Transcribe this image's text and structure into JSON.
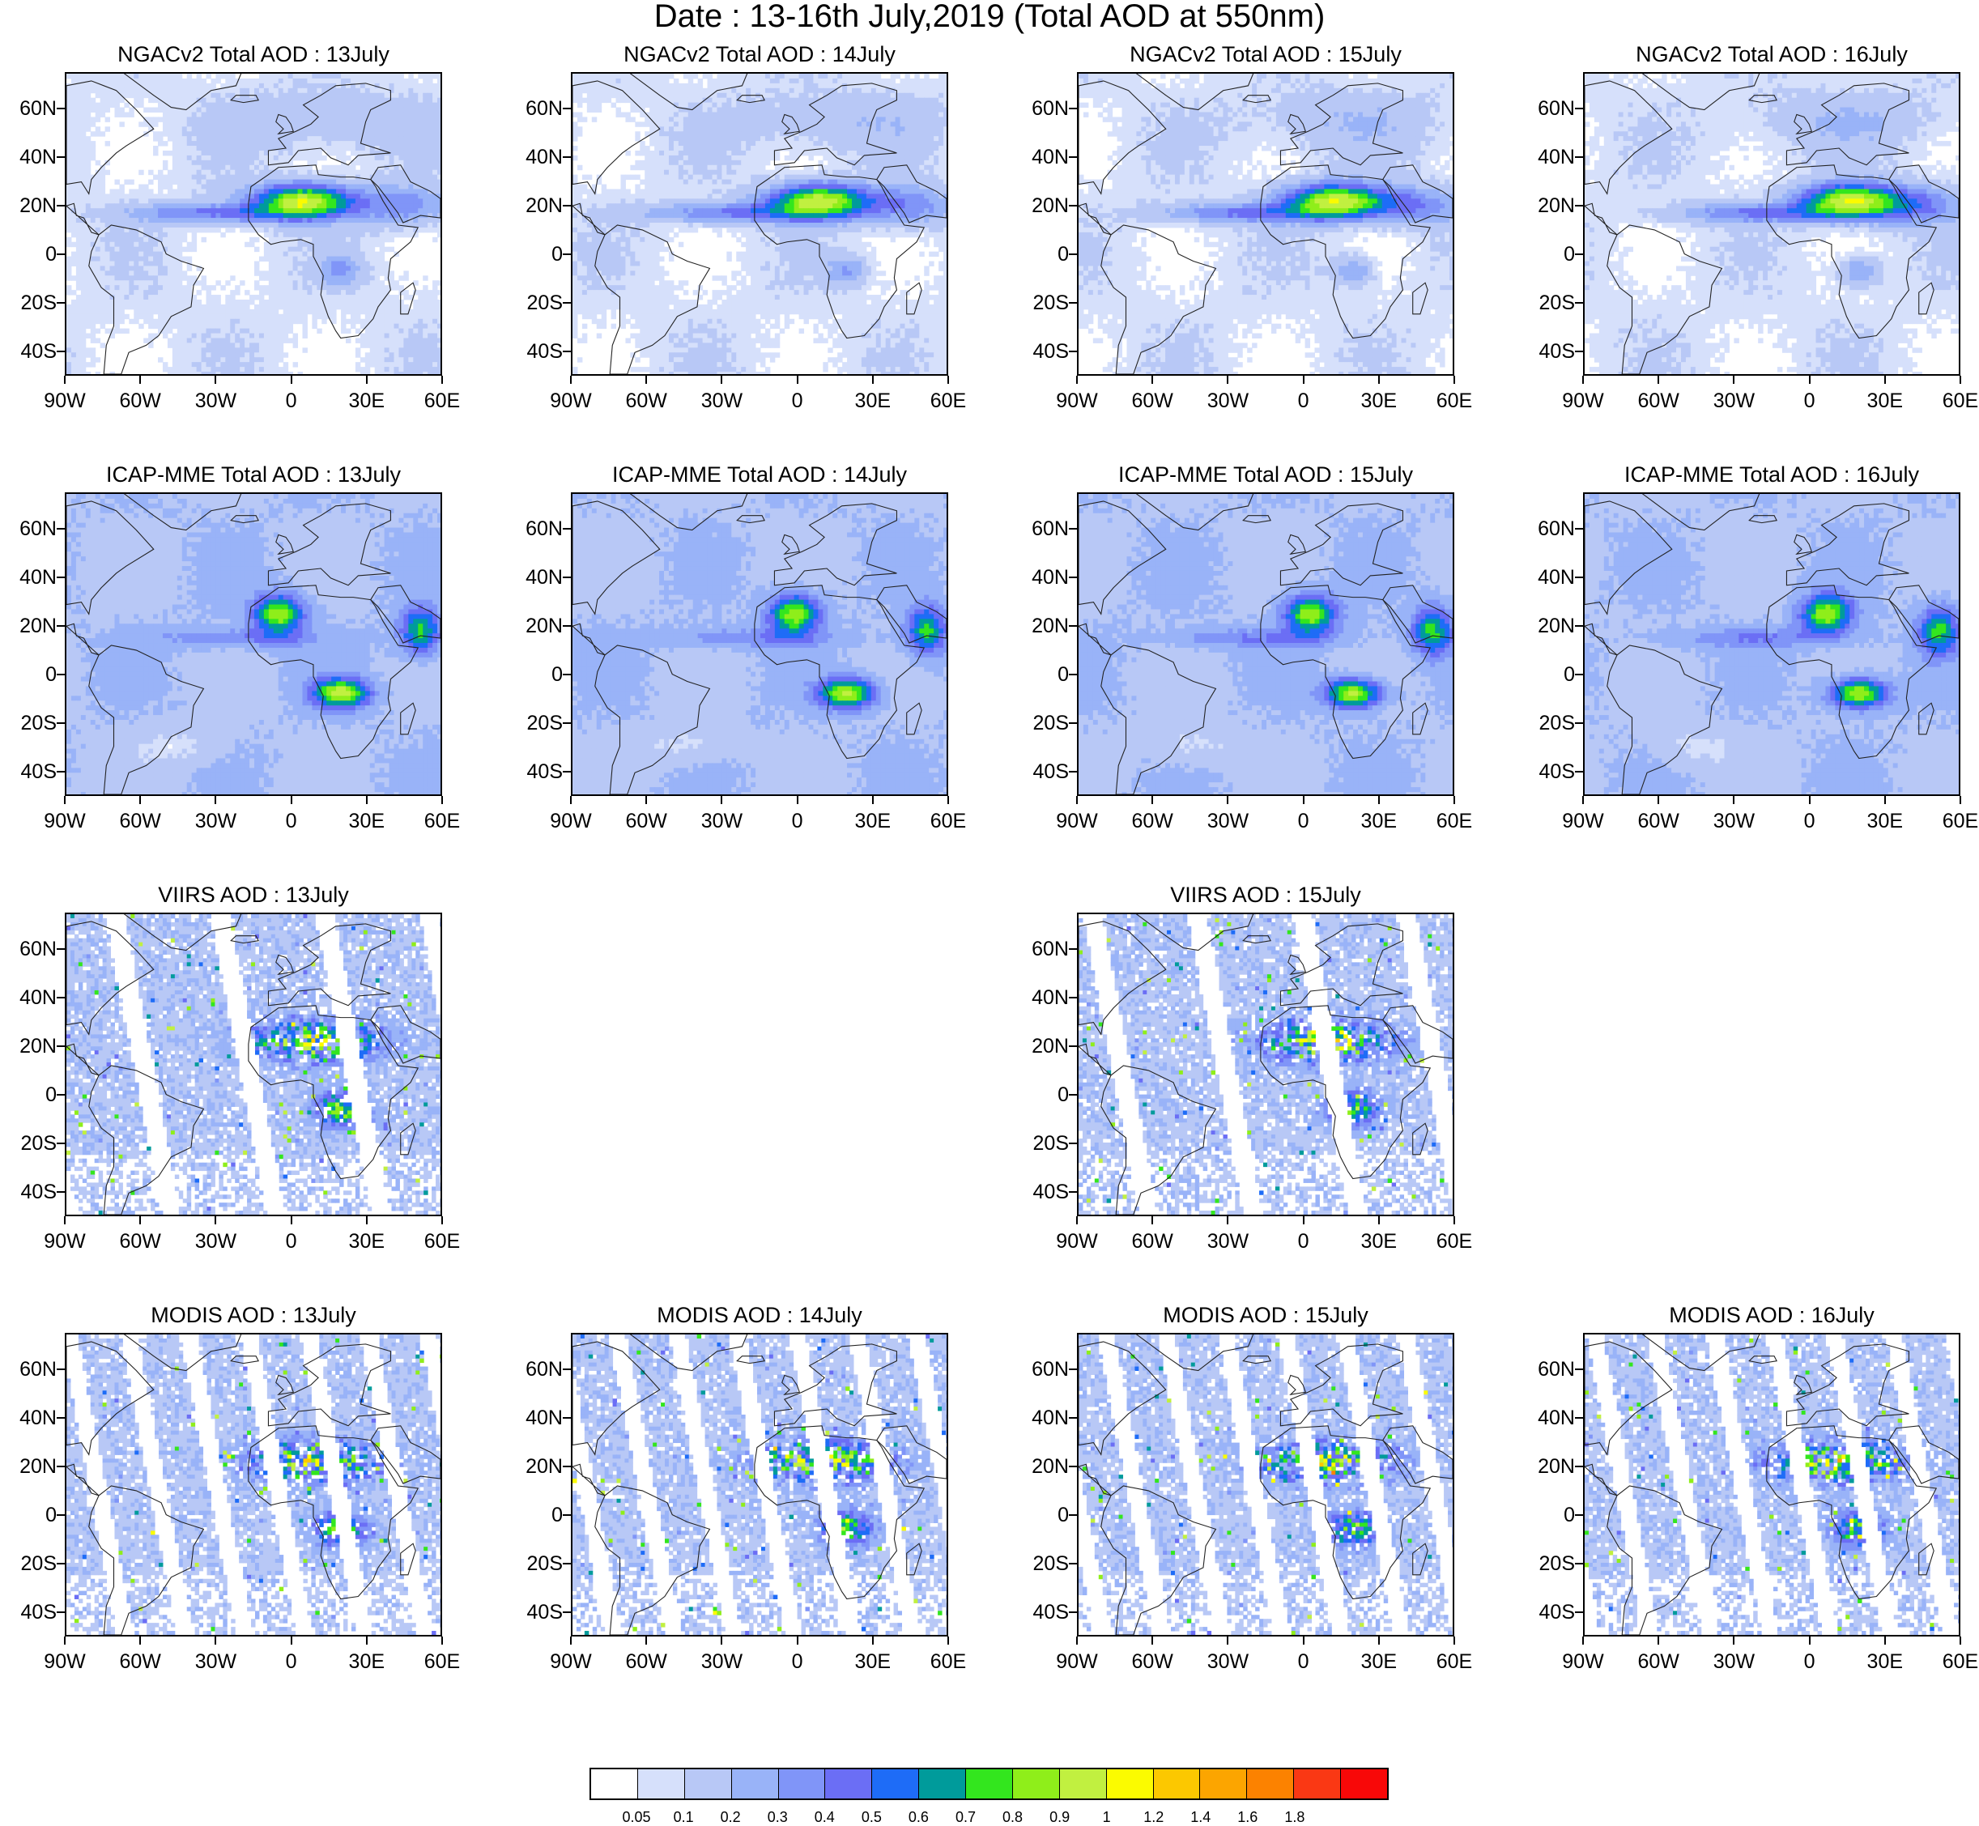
{
  "title": "Date : 13-16th July,2019 (Total AOD at 550nm)",
  "lat_ticks": [
    "60N",
    "40N",
    "20N",
    "0",
    "20S",
    "40S"
  ],
  "lon_ticks": [
    "90W",
    "60W",
    "30W",
    "0",
    "30E",
    "60E"
  ],
  "colorbar": {
    "colors": [
      "#ffffff",
      "#d6e0fb",
      "#b8c8f6",
      "#99b3f8",
      "#8095f8",
      "#6b6ef5",
      "#1e6cf7",
      "#009b9b",
      "#33e61e",
      "#8fee1a",
      "#c1f040",
      "#fbfb00",
      "#fcc800",
      "#fca500",
      "#fc8200",
      "#fa3814",
      "#f80808"
    ],
    "labels": [
      "0.05",
      "0.1",
      "0.2",
      "0.3",
      "0.4",
      "0.5",
      "0.6",
      "0.7",
      "0.8",
      "0.9",
      "1",
      "1.2",
      "1.4",
      "1.6",
      "1.8"
    ]
  },
  "panels": [
    {
      "title": "NGACv2 Total AOD : 13July",
      "type": "model",
      "product": "NGACv2",
      "day": 13
    },
    {
      "title": "NGACv2 Total AOD : 14July",
      "type": "model",
      "product": "NGACv2",
      "day": 14
    },
    {
      "title": "NGACv2 Total AOD : 15July",
      "type": "model",
      "product": "NGACv2",
      "day": 15
    },
    {
      "title": "NGACv2 Total AOD : 16July",
      "type": "model",
      "product": "NGACv2",
      "day": 16
    },
    {
      "title": "ICAP-MME Total AOD : 13July",
      "type": "model",
      "product": "ICAP-MME",
      "day": 13
    },
    {
      "title": "ICAP-MME Total AOD : 14July",
      "type": "model",
      "product": "ICAP-MME",
      "day": 14
    },
    {
      "title": "ICAP-MME Total AOD : 15July",
      "type": "model",
      "product": "ICAP-MME",
      "day": 15
    },
    {
      "title": "ICAP-MME Total AOD : 16July",
      "type": "model",
      "product": "ICAP-MME",
      "day": 16
    },
    {
      "title": "VIIRS AOD : 13July",
      "type": "satellite",
      "product": "VIIRS",
      "day": 13
    },
    {
      "title": "VIIRS AOD : 15July",
      "type": "satellite",
      "product": "VIIRS",
      "day": 15
    },
    {
      "title": "MODIS AOD : 13July",
      "type": "satellite",
      "product": "MODIS",
      "day": 13
    },
    {
      "title": "MODIS AOD : 14July",
      "type": "satellite",
      "product": "MODIS",
      "day": 14
    },
    {
      "title": "MODIS AOD : 15July",
      "type": "satellite",
      "product": "MODIS",
      "day": 15
    },
    {
      "title": "MODIS AOD : 16July",
      "type": "satellite",
      "product": "MODIS",
      "day": 16
    }
  ]
}
